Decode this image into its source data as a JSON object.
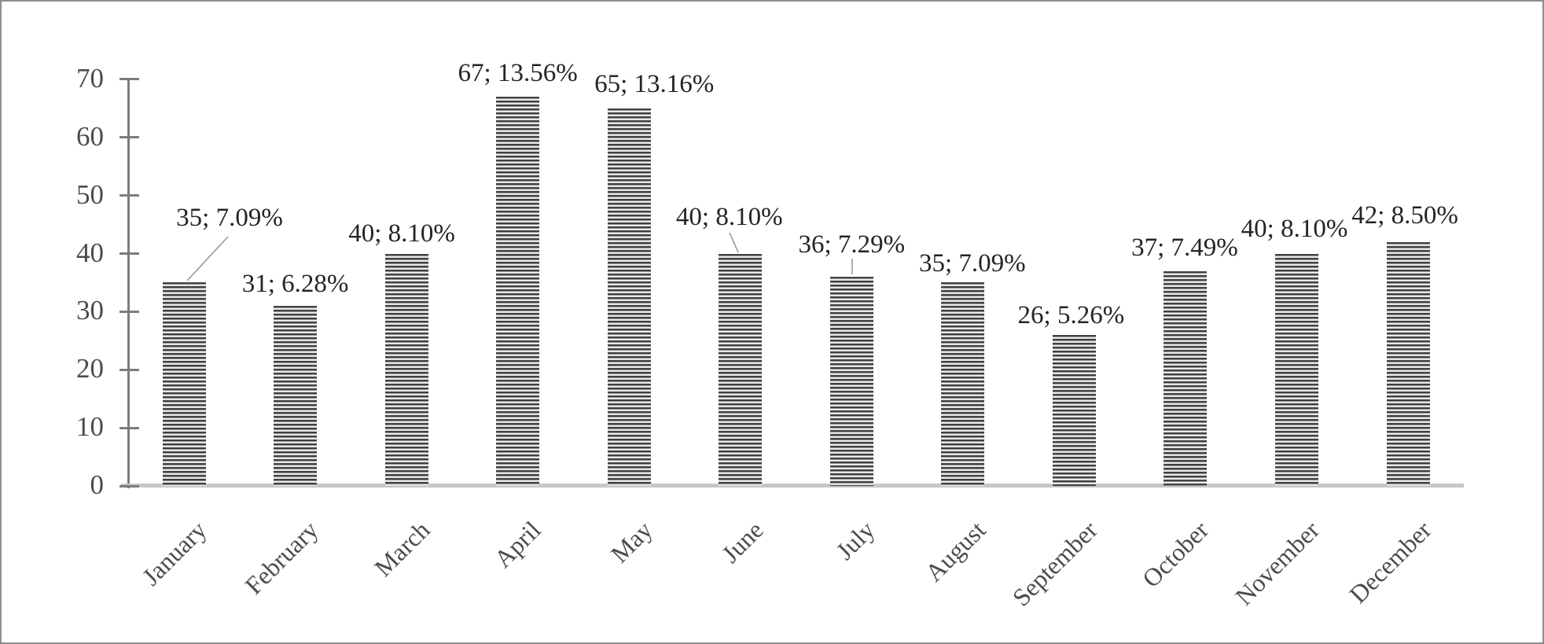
{
  "chart_data": {
    "type": "bar",
    "title": "",
    "xlabel": "",
    "ylabel": "",
    "categories": [
      "January",
      "February",
      "March",
      "April",
      "May",
      "June",
      "July",
      "August",
      "September",
      "October",
      "November",
      "December"
    ],
    "values": [
      35,
      31,
      40,
      67,
      65,
      40,
      36,
      35,
      26,
      37,
      40,
      42
    ],
    "percentages": [
      7.09,
      6.28,
      8.1,
      13.56,
      13.16,
      8.1,
      7.29,
      7.09,
      5.26,
      7.49,
      8.1,
      8.5
    ],
    "data_labels": [
      "35; 7.09%",
      "31; 6.28%",
      "40; 8.10%",
      "67; 13.56%",
      "65; 13.16%",
      "40; 8.10%",
      "36; 7.29%",
      "35; 7.09%",
      "26; 5.26%",
      "37; 7.49%",
      "40; 8.10%",
      "42; 8.50%"
    ],
    "y_ticks": [
      0,
      10,
      20,
      30,
      40,
      50,
      60,
      70
    ],
    "ylim": [
      0,
      70
    ],
    "grid": false,
    "legend": "none",
    "bar_pattern": "horizontal-stripes",
    "colors": {
      "bar_stripe_dark": "#404040",
      "bar_stripe_light": "#efefef",
      "axis": "#7d7d7d",
      "baseline": "#c6c6c6",
      "data_label_text": "#242424",
      "axis_text": "#4c4c4c",
      "figure_border": "#8f8f8f",
      "leader_line": "#999999"
    }
  }
}
